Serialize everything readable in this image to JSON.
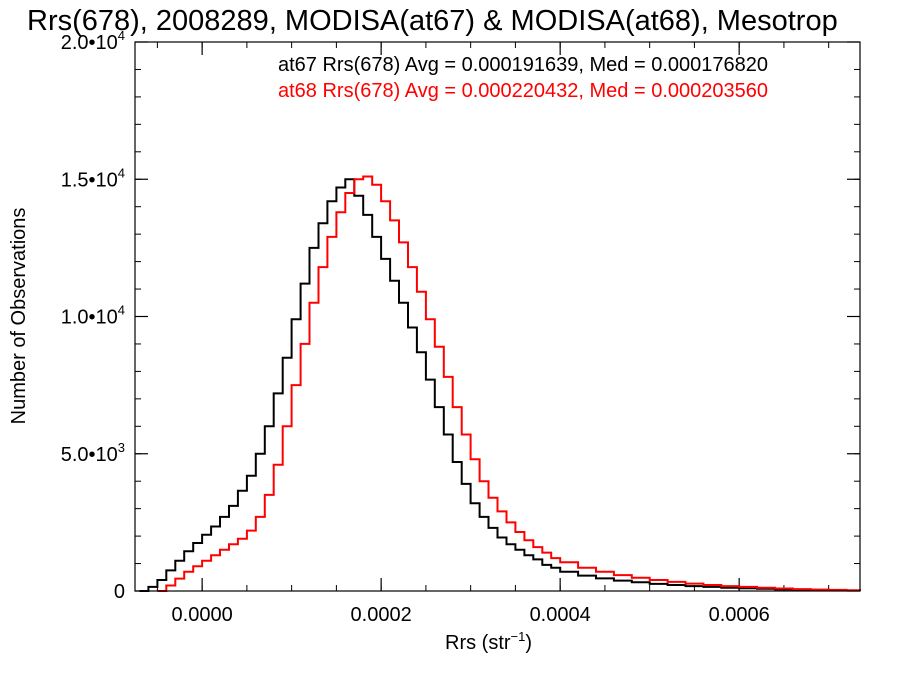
{
  "chart_data": {
    "type": "line",
    "title": "Rrs(678), 2008289, MODISA(at67) & MODISA(at68), Mesotrop",
    "xlabel": "Rrs (str",
    "xlabel_sup": "−1",
    "xlabel_close": ")",
    "ylabel": "Number of Observations",
    "xlim": [
      -7.5e-05,
      0.000735
    ],
    "ylim": [
      0,
      20000
    ],
    "x_ticks": [
      {
        "value": 0.0,
        "label": "0.0000"
      },
      {
        "value": 0.0002,
        "label": "0.0002"
      },
      {
        "value": 0.0004,
        "label": "0.0004"
      },
      {
        "value": 0.0006,
        "label": "0.0006"
      }
    ],
    "y_ticks": [
      {
        "value": 0,
        "mant": "0",
        "exp": ""
      },
      {
        "value": 5000,
        "mant": "5.0•10",
        "exp": "3"
      },
      {
        "value": 10000,
        "mant": "1.0•10",
        "exp": "4"
      },
      {
        "value": 15000,
        "mant": "1.5•10",
        "exp": "4"
      },
      {
        "value": 20000,
        "mant": "2.0•10",
        "exp": "4"
      }
    ],
    "x_minor_step": 5e-05,
    "y_minor_step": 1000,
    "series": [
      {
        "name": "at67",
        "label": "at67 Rrs(678) Avg = 0.000191639, Med = 0.000176820",
        "color": "#000000",
        "x": [
          -7e-05,
          -6e-05,
          -5e-05,
          -4e-05,
          -3e-05,
          -2e-05,
          -1e-05,
          0.0,
          1e-05,
          2e-05,
          3e-05,
          4e-05,
          5e-05,
          6e-05,
          7e-05,
          8e-05,
          9e-05,
          0.0001,
          0.00011,
          0.00012,
          0.00013,
          0.00014,
          0.00015,
          0.00016,
          0.00017,
          0.00018,
          0.00019,
          0.0002,
          0.00021,
          0.00022,
          0.00023,
          0.00024,
          0.00025,
          0.00026,
          0.00027,
          0.00028,
          0.00029,
          0.0003,
          0.00031,
          0.00032,
          0.00033,
          0.00034,
          0.00035,
          0.00036,
          0.00037,
          0.00038,
          0.00039,
          0.0004,
          0.00042,
          0.00044,
          0.00046,
          0.00048,
          0.0005,
          0.00052,
          0.00054,
          0.00056,
          0.00058,
          0.0006,
          0.00062,
          0.00064,
          0.00066,
          0.00068,
          0.0007,
          0.00072,
          0.000735
        ],
        "y": [
          0,
          150,
          400,
          750,
          1100,
          1450,
          1750,
          2050,
          2350,
          2700,
          3100,
          3650,
          4200,
          5000,
          6000,
          7200,
          8500,
          9900,
          11200,
          12500,
          13400,
          14200,
          14700,
          15000,
          14400,
          13700,
          12900,
          12100,
          11300,
          10500,
          9600,
          8700,
          7700,
          6700,
          5700,
          4700,
          3900,
          3200,
          2700,
          2300,
          1950,
          1700,
          1500,
          1300,
          1150,
          950,
          850,
          700,
          560,
          460,
          380,
          320,
          260,
          220,
          180,
          150,
          120,
          100,
          80,
          60,
          50,
          40,
          30,
          20,
          0
        ]
      },
      {
        "name": "at68",
        "label": "at68 Rrs(678) Avg = 0.000220432, Med = 0.000203560",
        "color": "#ff0000",
        "x": [
          -5e-05,
          -4e-05,
          -3e-05,
          -2e-05,
          -1e-05,
          0.0,
          1e-05,
          2e-05,
          3e-05,
          4e-05,
          5e-05,
          6e-05,
          7e-05,
          8e-05,
          9e-05,
          0.0001,
          0.00011,
          0.00012,
          0.00013,
          0.00014,
          0.00015,
          0.00016,
          0.00017,
          0.00018,
          0.00019,
          0.0002,
          0.00021,
          0.00022,
          0.00023,
          0.00024,
          0.00025,
          0.00026,
          0.00027,
          0.00028,
          0.00029,
          0.0003,
          0.00031,
          0.00032,
          0.00033,
          0.00034,
          0.00035,
          0.00036,
          0.00037,
          0.00038,
          0.00039,
          0.0004,
          0.00042,
          0.00044,
          0.00046,
          0.00048,
          0.0005,
          0.00052,
          0.00054,
          0.00056,
          0.00058,
          0.0006,
          0.00062,
          0.00064,
          0.00066,
          0.00068,
          0.0007,
          0.00072,
          0.000735
        ],
        "y": [
          0,
          200,
          450,
          700,
          900,
          1100,
          1300,
          1500,
          1700,
          1900,
          2200,
          2700,
          3500,
          4600,
          6000,
          7500,
          9000,
          10500,
          11800,
          12900,
          13800,
          14500,
          15000,
          15100,
          14800,
          14200,
          13500,
          12700,
          11800,
          10900,
          9900,
          8900,
          7800,
          6700,
          5700,
          4800,
          4000,
          3400,
          2900,
          2500,
          2150,
          1850,
          1600,
          1400,
          1200,
          1050,
          850,
          700,
          580,
          480,
          400,
          330,
          270,
          220,
          180,
          150,
          120,
          90,
          70,
          50,
          40,
          30,
          0
        ]
      }
    ]
  }
}
